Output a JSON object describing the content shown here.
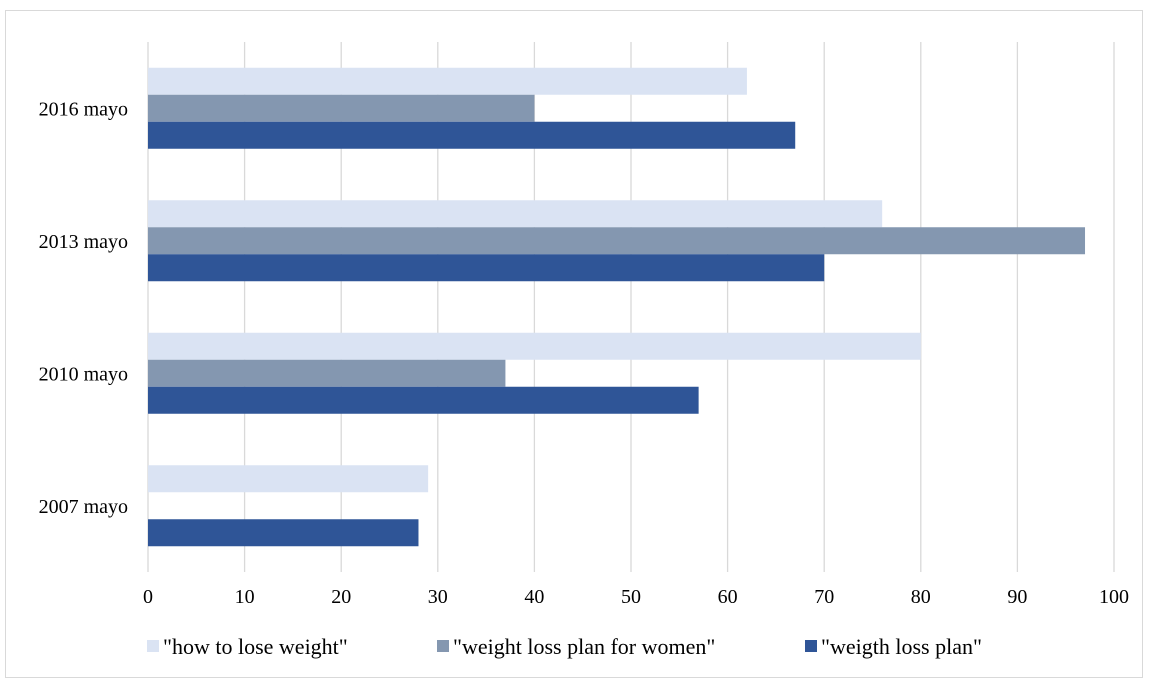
{
  "chart_data": {
    "type": "bar",
    "orientation": "horizontal",
    "categories": [
      "2007 mayo",
      "2010 mayo",
      "2013 mayo",
      "2016 mayo"
    ],
    "series": [
      {
        "name": "\"how to lose weight\"",
        "color": "#dae3f3",
        "values": [
          29,
          80,
          76,
          62
        ]
      },
      {
        "name": "\"weight loss plan for women\"",
        "color": "#8497b0",
        "values": [
          0,
          37,
          97,
          40
        ]
      },
      {
        "name": "\"weigth loss plan\"",
        "color": "#2f5597",
        "values": [
          28,
          57,
          70,
          67
        ]
      }
    ],
    "xlim": [
      0,
      100
    ],
    "xticks": [
      0,
      10,
      20,
      30,
      40,
      50,
      60,
      70,
      80,
      90,
      100
    ],
    "grid": "vertical",
    "legend_position": "bottom"
  }
}
